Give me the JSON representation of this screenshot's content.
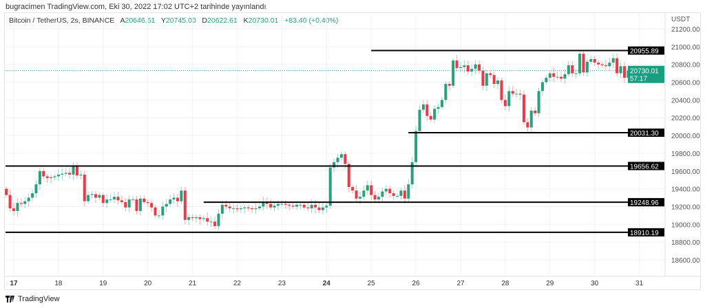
{
  "published": "bugracimen TradingView.com, Eki 30, 2022 17:02 UTC+2 tarihinde yayınlandı",
  "legend": {
    "symbol": "Bitcoin / TetherUS, 2s, BINANCE",
    "o_label": "A",
    "o": "20646.61",
    "h_label": "Y",
    "h": "20745.00",
    "l_label": "D",
    "l": "20622.61",
    "c_label": "K",
    "c": "20730.01",
    "change": "+83.40 (+0.40%)"
  },
  "footer": {
    "brand": "TradingView"
  },
  "colors": {
    "up": "#26a17b",
    "down": "#f23645",
    "level": "#000000",
    "current": "#1a9e80"
  },
  "chart_data": {
    "type": "candlestick",
    "currency": "USDT",
    "interval": "2h",
    "start": "2022-10-16 20:00",
    "first_open": 19400,
    "closes": [
      19330,
      19180,
      19150,
      19240,
      19230,
      19260,
      19300,
      19350,
      19450,
      19600,
      19540,
      19520,
      19530,
      19540,
      19560,
      19570,
      19580,
      19560,
      19650,
      19550,
      19560,
      19260,
      19330,
      19340,
      19300,
      19330,
      19240,
      19280,
      19280,
      19310,
      19270,
      19250,
      19190,
      19280,
      19280,
      19150,
      19290,
      19250,
      19240,
      19190,
      19100,
      19100,
      19200,
      19230,
      19280,
      19300,
      19260,
      19380,
      19050,
      19080,
      19070,
      19080,
      19060,
      19070,
      19030,
      19030,
      18980,
      19120,
      19220,
      19200,
      19180,
      19180,
      19170,
      19180,
      19190,
      19180,
      19170,
      19180,
      19200,
      19250,
      19230,
      19190,
      19210,
      19230,
      19230,
      19220,
      19210,
      19200,
      19220,
      19220,
      19190,
      19180,
      19220,
      19190,
      19160,
      19190,
      19210,
      19640,
      19700,
      19750,
      19790,
      19680,
      19420,
      19380,
      19290,
      19310,
      19380,
      19440,
      19330,
      19280,
      19310,
      19370,
      19400,
      19350,
      19320,
      19320,
      19380,
      19290,
      19450,
      19700,
      20050,
      20290,
      20350,
      20220,
      20180,
      20300,
      20320,
      20400,
      20580,
      20560,
      20844,
      20760,
      20770,
      20790,
      20720,
      20750,
      20800,
      20730,
      20560,
      20700,
      20680,
      20580,
      20620,
      20400,
      20330,
      20500,
      20470,
      20470,
      20460,
      20150,
      20090,
      20280,
      20250,
      20500,
      20600,
      20650,
      20700,
      20660,
      20660,
      20640,
      20690,
      20790,
      20700,
      20700,
      20920,
      20710,
      20830,
      20860,
      20820,
      20800,
      20790,
      20780,
      20820,
      20870,
      20700,
      20780,
      20650,
      20730.01
    ],
    "y_ticks": [
      "21200.00",
      "21000.00",
      "20800.00",
      "20600.00",
      "20400.00",
      "20200.00",
      "20000.00",
      "19800.00",
      "19600.00",
      "19400.00",
      "19200.00",
      "19000.00",
      "18800.00",
      "18600.00"
    ],
    "ylim": [
      18500,
      21300
    ],
    "x_ticks": [
      {
        "label": "17",
        "bold": true
      },
      {
        "label": "18"
      },
      {
        "label": "19"
      },
      {
        "label": "20"
      },
      {
        "label": "21"
      },
      {
        "label": "22"
      },
      {
        "label": "23"
      },
      {
        "label": "24",
        "bold": true
      },
      {
        "label": "25"
      },
      {
        "label": "26"
      },
      {
        "label": "27"
      },
      {
        "label": "28"
      },
      {
        "label": "29"
      },
      {
        "label": "30"
      },
      {
        "label": "31"
      }
    ],
    "levels": [
      {
        "value": 20955.89,
        "label": "20955.89",
        "from": "2022-10-25 00:00"
      },
      {
        "value": 20031.3,
        "label": "20031.30",
        "from": "2022-10-25 20:00"
      },
      {
        "value": 19656.62,
        "label": "19656.62",
        "from": "2022-10-16 18:00"
      },
      {
        "value": 19248.96,
        "label": "19248.96",
        "from": "2022-10-21 06:00"
      },
      {
        "value": 18910.19,
        "label": "18910.19",
        "from": "2022-10-16 18:00"
      }
    ],
    "current_price": {
      "value": 20730.01,
      "label": "20730.01",
      "countdown": "57:17"
    }
  }
}
